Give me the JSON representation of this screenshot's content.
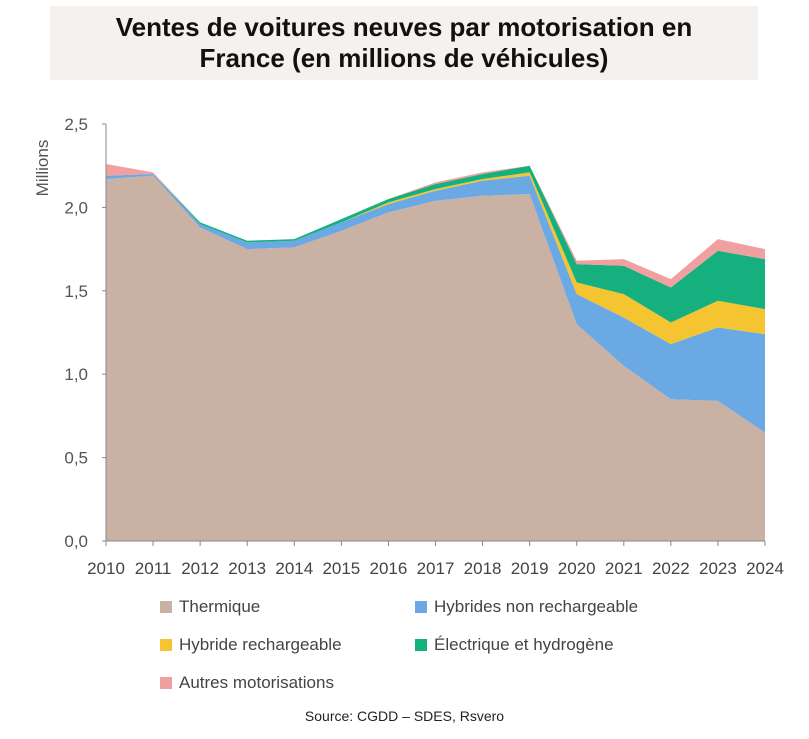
{
  "title": "Ventes de voitures neuves par motorisation en France (en millions de véhicules)",
  "source": "Source: CGDD –  SDES, Rsvero",
  "chart_data": {
    "type": "area",
    "stacked": true,
    "title": "Ventes de voitures neuves par motorisation en France (en millions de véhicules)",
    "ylabel": "Millions",
    "xlabel": "",
    "ylim": [
      0,
      2.5
    ],
    "yticks": [
      "0,0",
      "0,5",
      "1,0",
      "1,5",
      "2,0",
      "2,5"
    ],
    "grid": false,
    "legend_position": "bottom",
    "categories": [
      "2010",
      "2011",
      "2012",
      "2013",
      "2014",
      "2015",
      "2016",
      "2017",
      "2018",
      "2019",
      "2020",
      "2021",
      "2022",
      "2023",
      "2024"
    ],
    "series": [
      {
        "name": "Thermique",
        "color": "#c9b1a3",
        "values": [
          2.17,
          2.19,
          1.88,
          1.75,
          1.76,
          1.86,
          1.97,
          2.04,
          2.07,
          2.08,
          1.3,
          1.05,
          0.85,
          0.84,
          0.65
        ]
      },
      {
        "name": "Hybrides non rechargeable",
        "color": "#6aa9e4",
        "values": [
          0.02,
          0.01,
          0.02,
          0.04,
          0.04,
          0.05,
          0.05,
          0.06,
          0.09,
          0.11,
          0.18,
          0.29,
          0.33,
          0.44,
          0.59
        ]
      },
      {
        "name": "Hybride rechargeable",
        "color": "#f5c431",
        "values": [
          0.0,
          0.0,
          0.0,
          0.0,
          0.0,
          0.0,
          0.01,
          0.01,
          0.01,
          0.02,
          0.07,
          0.14,
          0.13,
          0.16,
          0.15
        ]
      },
      {
        "name": "Électrique et hydrogène",
        "color": "#16b07f",
        "values": [
          0.0,
          0.0,
          0.01,
          0.01,
          0.01,
          0.02,
          0.02,
          0.03,
          0.03,
          0.04,
          0.11,
          0.17,
          0.21,
          0.3,
          0.3
        ]
      },
      {
        "name": "Autres motorisations",
        "color": "#f0a0a0",
        "values": [
          0.07,
          0.01,
          0.0,
          0.0,
          0.0,
          0.0,
          0.0,
          0.01,
          0.01,
          0.0,
          0.02,
          0.04,
          0.05,
          0.07,
          0.06
        ]
      }
    ]
  }
}
